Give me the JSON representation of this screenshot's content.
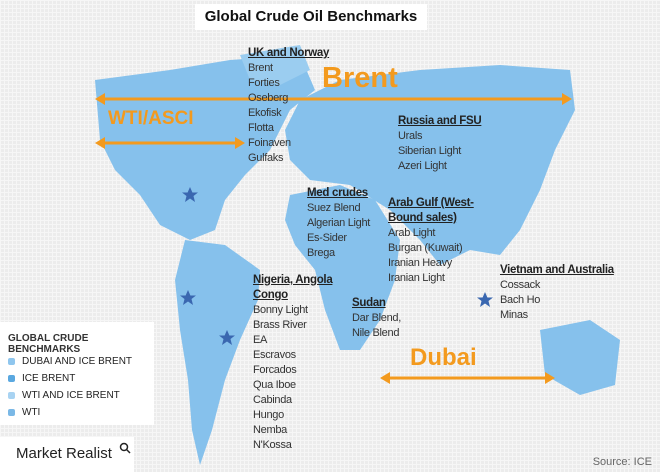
{
  "title": "Global Crude Oil Benchmarks",
  "benchmarks": {
    "brent": "Brent",
    "wti": "WTI/ASCI",
    "dubai": "Dubai"
  },
  "regions": [
    {
      "name": "UK and Norway",
      "crudes": [
        "Brent",
        "Forties",
        "Oseberg",
        "Ekofisk",
        "Flotta",
        "Foinaven",
        "Gulfaks"
      ]
    },
    {
      "name": "Russia and FSU",
      "crudes": [
        "Urals",
        "Siberian Light",
        "Azeri Light"
      ]
    },
    {
      "name": "Med crudes",
      "crudes": [
        "Suez Blend",
        "Algerian Light",
        "Es-Sider",
        "Brega"
      ]
    },
    {
      "name": "Arab Gulf (West-Bound sales)",
      "crudes": [
        "Arab Light",
        "Burgan (Kuwait)",
        "Iranian Heavy",
        "Iranian Light"
      ]
    },
    {
      "name": "Vietnam and Australia",
      "crudes": [
        "Cossack",
        "Bach Ho",
        "Minas"
      ]
    },
    {
      "name": "Nigeria, Angola Congo",
      "crudes": [
        "Bonny Light",
        "Brass River",
        "EA",
        "Escravos",
        "Forcados",
        "Qua Iboe",
        "Cabinda",
        "Hungo",
        "Nemba",
        "N'Kossa"
      ]
    },
    {
      "name": "Sudan",
      "crudes": [
        "Dar Blend,",
        "Nile Blend"
      ]
    }
  ],
  "legend": {
    "title": "GLOBAL CRUDE BENCHMARKS",
    "items": [
      {
        "label": "DUBAI AND ICE BRENT",
        "color": "#8fc6ee"
      },
      {
        "label": "ICE BRENT",
        "color": "#5aa8e0"
      },
      {
        "label": "WTI AND ICE BRENT",
        "color": "#a8d3f2"
      },
      {
        "label": "WTI",
        "color": "#7ab8e6"
      }
    ]
  },
  "colors": {
    "land": "#86c1ec",
    "accent": "#f39a1e",
    "star": "#3a67b0"
  },
  "brand": "Market Realist",
  "source": "Source: ICE"
}
